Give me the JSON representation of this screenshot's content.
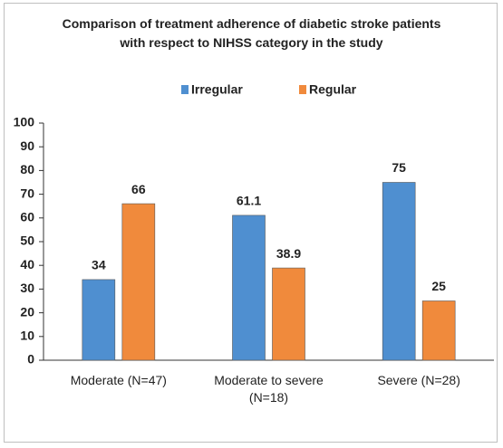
{
  "chart_data": {
    "type": "bar",
    "title": "Comparison of treatment adherence of diabetic stroke patients\nwith respect to NIHSS category in the study",
    "categories": [
      "Moderate (N=47)",
      "Moderate to severe (N=18)",
      "Severe (N=28)"
    ],
    "series": [
      {
        "name": "Irregular",
        "color": "#4f8fd0",
        "values": [
          34,
          61.1,
          75
        ]
      },
      {
        "name": "Regular",
        "color": "#f08a3c",
        "values": [
          66,
          38.9,
          25
        ]
      }
    ],
    "ylim": [
      0,
      100
    ],
    "yticks": [
      0,
      10,
      20,
      30,
      40,
      50,
      60,
      70,
      80,
      90,
      100
    ],
    "grid": false,
    "legend": "top"
  }
}
